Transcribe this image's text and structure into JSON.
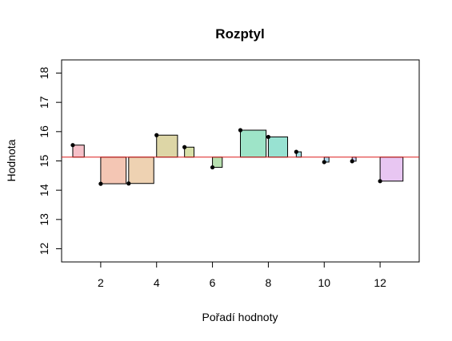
{
  "chart_data": {
    "type": "scatter",
    "title": "Rozptyl",
    "xlabel": "Pořadí hodnoty",
    "ylabel": "Hodnota",
    "xlim": [
      0.6,
      13.4
    ],
    "ylim": [
      11.55,
      18.45
    ],
    "x_ticks": [
      2,
      4,
      6,
      8,
      10,
      12
    ],
    "y_ticks": [
      12,
      13,
      14,
      15,
      16,
      17,
      18
    ],
    "mean": 15.13,
    "mean_color": "#dd1c1c",
    "points": [
      {
        "x": 1,
        "y": 15.54
      },
      {
        "x": 2,
        "y": 14.22
      },
      {
        "x": 3,
        "y": 14.23
      },
      {
        "x": 4,
        "y": 15.88
      },
      {
        "x": 5,
        "y": 15.47
      },
      {
        "x": 6,
        "y": 14.78
      },
      {
        "x": 7,
        "y": 16.05
      },
      {
        "x": 8,
        "y": 15.82
      },
      {
        "x": 9,
        "y": 15.31
      },
      {
        "x": 10,
        "y": 14.96
      },
      {
        "x": 11,
        "y": 14.99
      },
      {
        "x": 12,
        "y": 14.31
      }
    ],
    "square_colors": [
      "#f6c0c8",
      "#f4c6b4",
      "#eed2b2",
      "#ddd6a6",
      "#d8e0a8",
      "#b8e0b0",
      "#9ee4c8",
      "#98e2d2",
      "#a4e0e4",
      "#b0d8ee",
      "#cad0f4",
      "#e8c6f2"
    ],
    "grid": false,
    "legend": "none"
  }
}
